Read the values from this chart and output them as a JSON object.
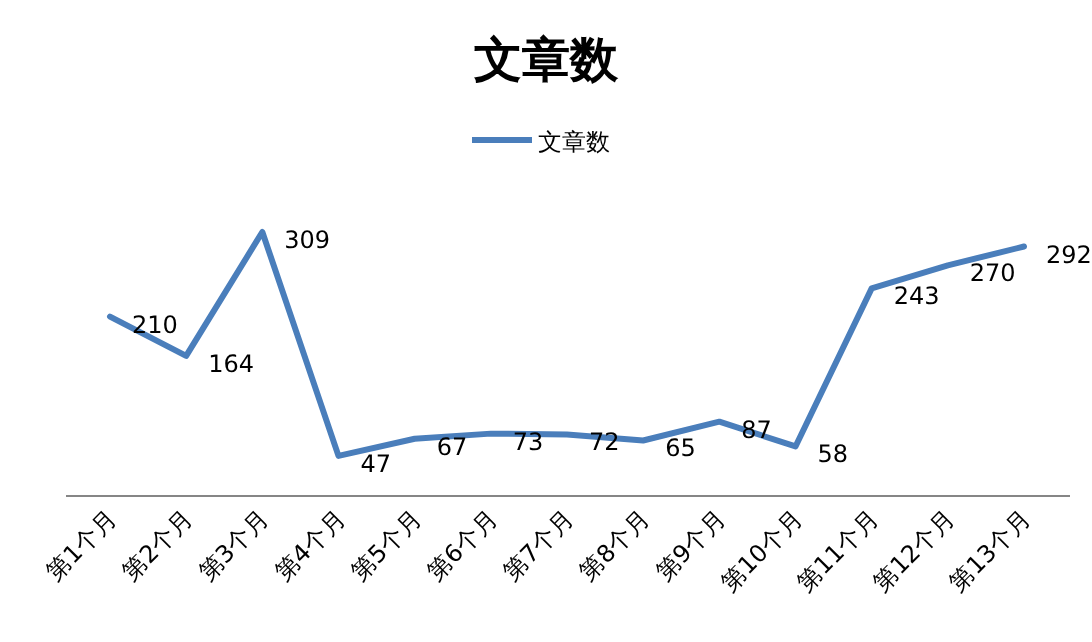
{
  "chart_data": {
    "type": "line",
    "title": "文章数",
    "categories": [
      "第1个月",
      "第2个月",
      "第3个月",
      "第4个月",
      "第5个月",
      "第6个月",
      "第7个月",
      "第8个月",
      "第9个月",
      "第10个月",
      "第11个月",
      "第12个月",
      "第13个月"
    ],
    "series": [
      {
        "name": "文章数",
        "color": "#4a7ebb",
        "values": [
          210,
          164,
          309,
          47,
          67,
          73,
          72,
          65,
          87,
          58,
          243,
          270,
          292
        ]
      }
    ],
    "data_labels": true,
    "legend": "top",
    "marker": "none",
    "line_style": "solid"
  }
}
